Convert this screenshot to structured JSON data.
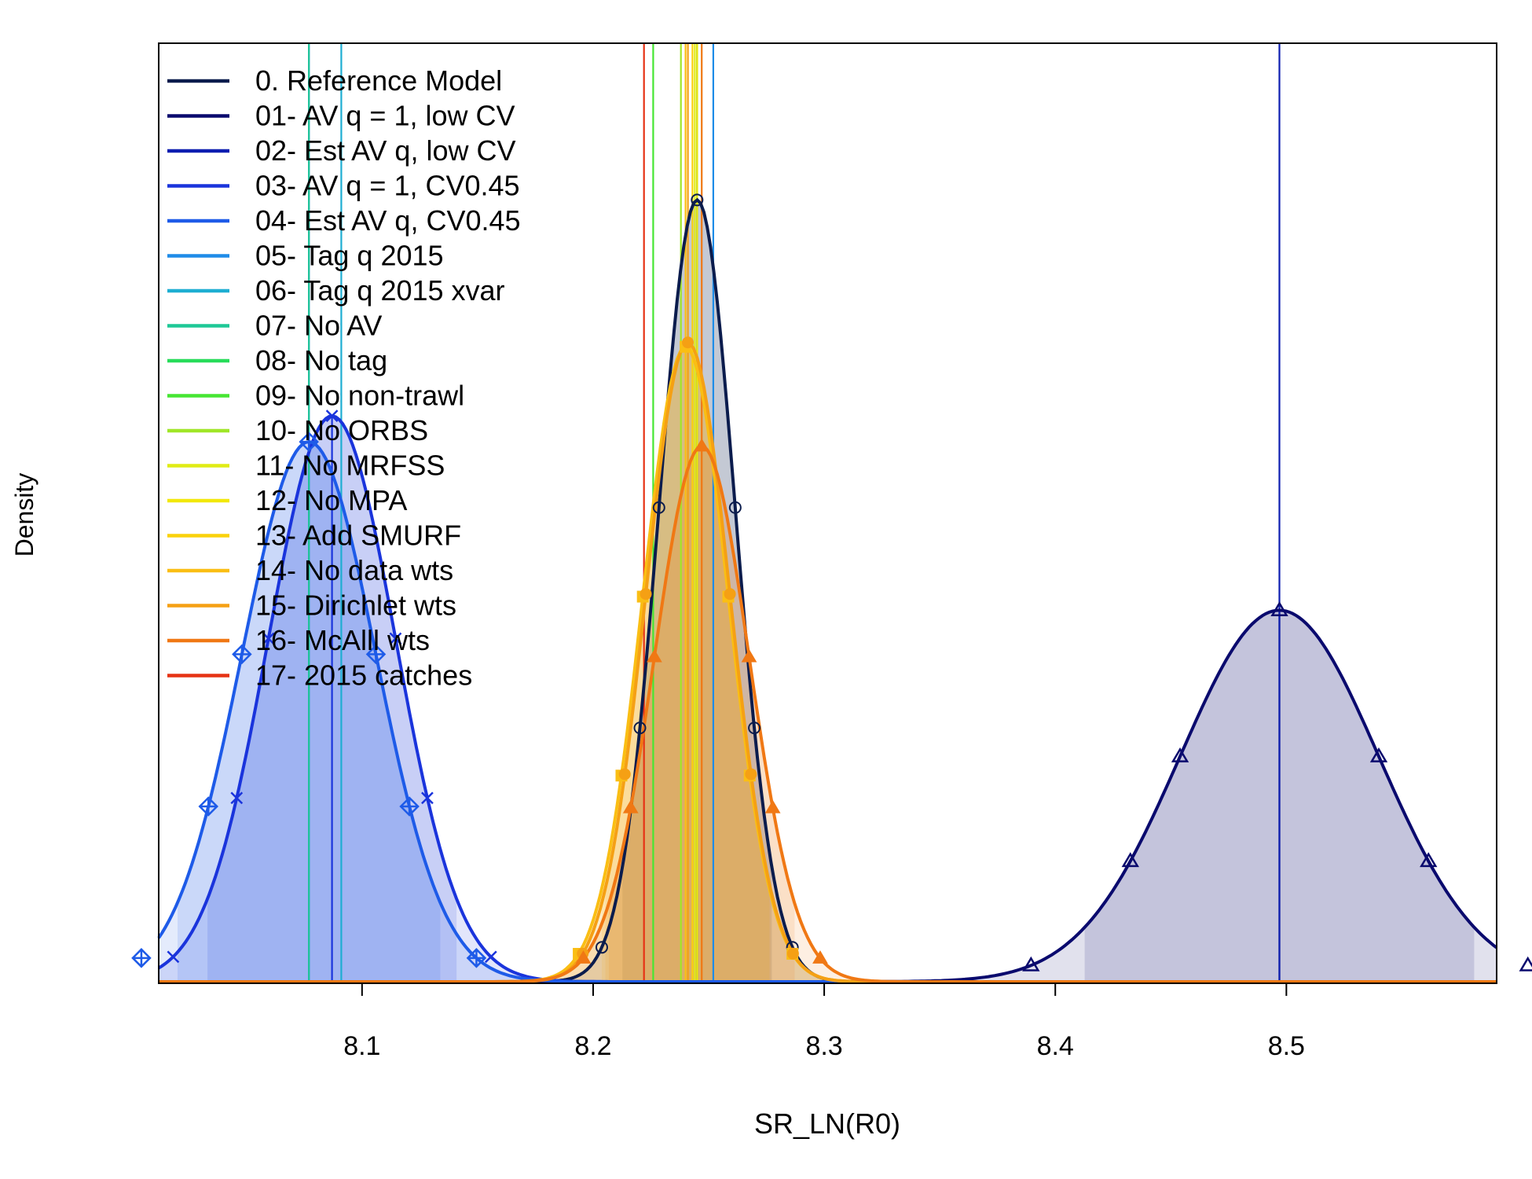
{
  "chart_data": {
    "type": "line",
    "xlabel": "SR_LN(R0)",
    "ylabel": "Density",
    "xlim": [
      8.012,
      8.591
    ],
    "x_ticks": [
      "8.1",
      "8.2",
      "8.3",
      "8.4",
      "8.5"
    ],
    "x_tick_values": [
      8.1,
      8.2,
      8.3,
      8.4,
      8.5
    ],
    "legend_position": "top-left",
    "series": [
      {
        "name": "0. Reference Model",
        "color": "#0b1c4d",
        "mean": 8.245,
        "sd": 0.0165,
        "peak": 0.905,
        "fill": "#0b1c4d",
        "marker": "circle",
        "draw": true
      },
      {
        "name": "01- AV q = 1, low CV",
        "color": "#0a0a6e",
        "mean": 8.497,
        "sd": 0.043,
        "peak": 0.43,
        "fill": "#0a0a6e",
        "marker": "triangle",
        "draw": true
      },
      {
        "name": "02- Est AV q, low CV",
        "color": "#0d1eb0",
        "mean": 8.497,
        "sd": 0.043,
        "peak": 0.43,
        "draw": false
      },
      {
        "name": "03- AV q = 1, CV0.45",
        "color": "#1a34dc",
        "mean": 8.087,
        "sd": 0.0275,
        "peak": 0.655,
        "fill": "#1a34dc",
        "marker": "x",
        "draw": true
      },
      {
        "name": "04- Est AV q, CV0.45",
        "color": "#1e5be8",
        "mean": 8.077,
        "sd": 0.029,
        "peak": 0.625,
        "fill": "#1e5be8",
        "marker": "diamond-plus",
        "draw": true
      },
      {
        "name": "05- Tag q 2015",
        "color": "#1e8ce8",
        "mean": 8.252,
        "draw": false
      },
      {
        "name": "06- Tag q 2015 xvar",
        "color": "#1eaed2",
        "mean": 8.091,
        "draw": false
      },
      {
        "name": "07- No AV",
        "color": "#1ec896",
        "mean": 8.077,
        "draw": false
      },
      {
        "name": "08- No tag",
        "color": "#28dc5a",
        "mean": 8.245,
        "draw": false
      },
      {
        "name": "09- No non-trawl",
        "color": "#46e632",
        "mean": 8.226,
        "draw": false
      },
      {
        "name": "10- No ORBS",
        "color": "#a0e628",
        "mean": 8.238,
        "draw": false
      },
      {
        "name": "11- No MRFSS",
        "color": "#e0ec14",
        "mean": 8.244,
        "draw": false
      },
      {
        "name": "12- No MPA",
        "color": "#f2e80a",
        "mean": 8.245,
        "draw": false
      },
      {
        "name": "13- Add SMURF",
        "color": "#fad20a",
        "mean": 8.243,
        "draw": false
      },
      {
        "name": "14- No data wts",
        "color": "#fabe14",
        "mean": 8.24,
        "sd": 0.0185,
        "peak": 0.735,
        "fill": "#fabe14",
        "marker": "square",
        "draw": true
      },
      {
        "name": "15- Dirichlet wts",
        "color": "#f5a014",
        "mean": 8.241,
        "sd": 0.0182,
        "peak": 0.74,
        "fill": "#f5a014",
        "marker": "dot",
        "draw": true
      },
      {
        "name": "16- McAlll wts",
        "color": "#f07814",
        "mean": 8.247,
        "sd": 0.0205,
        "peak": 0.62,
        "fill": "#f07814",
        "marker": "triangle-filled",
        "draw": true
      },
      {
        "name": "17- 2015 catches",
        "color": "#e63214",
        "mean": 8.222,
        "draw": false
      }
    ]
  }
}
